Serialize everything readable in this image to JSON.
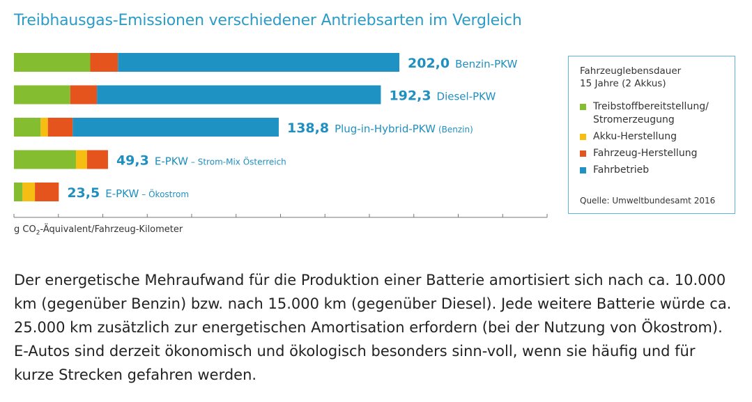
{
  "title": "Treibhausgas-Emissionen verschiedener Antriebsarten im Vergleich",
  "unit_label": {
    "main": "g CO",
    "sub": "2",
    "rest": "-Äquivalent/Fahrzeug-Kilometer"
  },
  "legend": {
    "heading_1": "Fahrzeuglebensdauer",
    "heading_2": "15 Jahre (2 Akkus)",
    "items": [
      {
        "label_1": "Treibstoffbereitstellung/",
        "label_2": "Stromerzeugung",
        "color": "#84bd30"
      },
      {
        "label_1": "Akku-Herstellung",
        "label_2": "",
        "color": "#f6be12"
      },
      {
        "label_1": "Fahrzeug-Herstellung",
        "label_2": "",
        "color": "#e5541c"
      },
      {
        "label_1": "Fahrbetrieb",
        "label_2": "",
        "color": "#1e93c3"
      }
    ],
    "source": "Quelle: Umweltbundesamt 2016"
  },
  "chart_data": {
    "type": "bar",
    "orientation": "horizontal",
    "stacked": true,
    "title": "Treibhausgas-Emissionen verschiedener Antriebsarten im Vergleich",
    "xlabel": "g CO2-Äquivalent/Fahrzeug-Kilometer",
    "xlim": [
      0,
      300
    ],
    "categories": [
      {
        "value_label": "202,0",
        "name": "Benzin-PKW",
        "name_sub": ""
      },
      {
        "value_label": "192,3",
        "name": "Diesel-PKW",
        "name_sub": ""
      },
      {
        "value_label": "138,8",
        "name": "Plug-in-Hybrid-PKW",
        "name_sub": "(Benzin)"
      },
      {
        "value_label": "49,3",
        "name": "E-PKW",
        "name_sub": "– Strom-Mix Österreich"
      },
      {
        "value_label": "23,5",
        "name": "E-PKW",
        "name_sub": "– Ökostrom"
      }
    ],
    "series": [
      {
        "name": "Treibstoffbereitstellung/Stromerzeugung",
        "color": "#84bd30",
        "values": [
          40,
          29.5,
          14,
          32.5,
          4.5
        ]
      },
      {
        "name": "Akku-Herstellung",
        "color": "#f6be12",
        "values": [
          0,
          0,
          3.8,
          5.8,
          6.5
        ]
      },
      {
        "name": "Fahrzeug-Herstellung",
        "color": "#e5541c",
        "values": [
          14.5,
          14,
          13,
          11,
          12.5
        ]
      },
      {
        "name": "Fahrbetrieb",
        "color": "#1e93c3",
        "values": [
          147.5,
          148.8,
          108,
          0,
          0
        ]
      }
    ],
    "totals": [
      202.0,
      192.3,
      138.8,
      49.3,
      23.5
    ],
    "grid": false,
    "legend_position": "right"
  },
  "body_text": "Der energetische Mehraufwand für die Produktion einer Batterie amortisiert sich nach ca. 10.000 km (gegenüber Benzin) bzw. nach 15.000 km (gegenüber Diesel). Jede weitere Batterie würde ca. 25.000 km zusätzlich zur energetischen Amortisation erfordern (bei der Nutzung von Ökostrom). E-Autos sind derzeit ökonomisch und ökologisch besonders sinn-voll, wenn sie häufig und für kurze Strecken gefahren werden."
}
